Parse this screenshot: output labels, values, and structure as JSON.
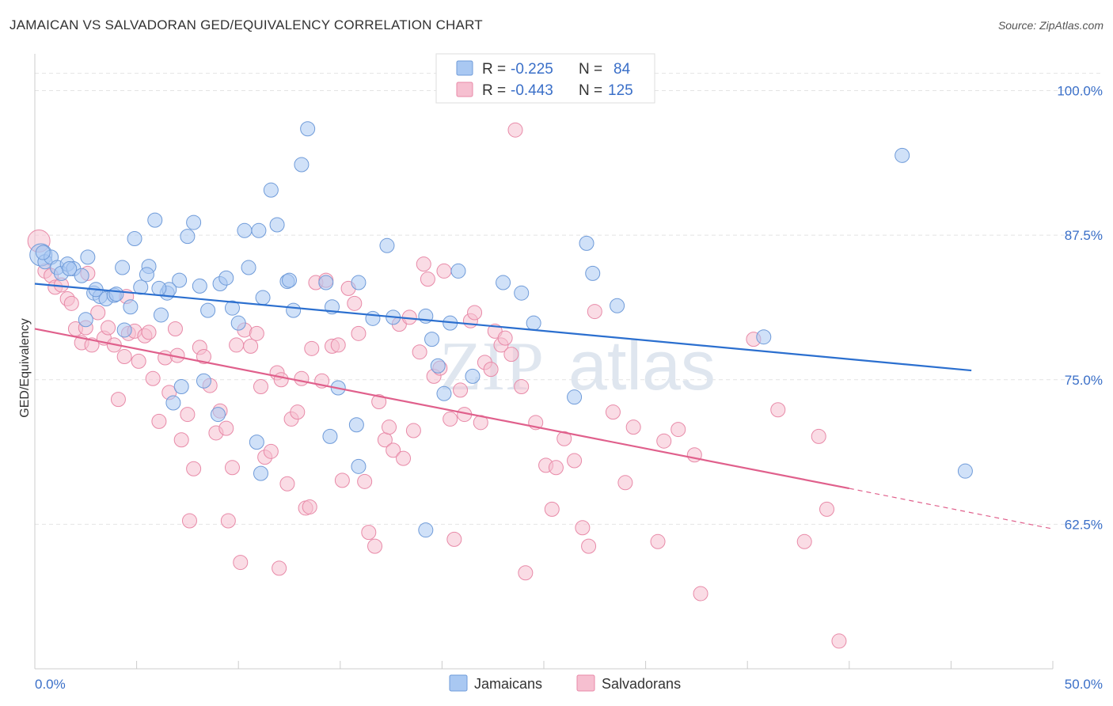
{
  "title": "JAMAICAN VS SALVADORAN GED/EQUIVALENCY CORRELATION CHART",
  "source": "Source: ZipAtlas.com",
  "watermark": {
    "zip": "ZIP",
    "atlas": "atlas"
  },
  "colors": {
    "jamaicans_fill": "#a9c8f2",
    "jamaicans_stroke": "#6f9bd9",
    "jamaicans_line": "#2b6fcf",
    "salvadorans_fill": "#f6bfd0",
    "salvadorans_stroke": "#e88aa8",
    "salvadorans_line": "#e0608c",
    "tick_text": "#3a6fc8",
    "grid": "#e4e4e4"
  },
  "legend": {
    "rows": [
      {
        "r_label": "R =",
        "r_value": "-0.225",
        "n_label": "N =",
        "n_value": "84"
      },
      {
        "r_label": "R =",
        "r_value": "-0.443",
        "n_label": "N =",
        "n_value": "125"
      }
    ]
  },
  "bottom_legend": {
    "items": [
      "Jamaicans",
      "Salvadorans"
    ]
  },
  "chart_data": {
    "type": "scatter",
    "title": "JAMAICAN VS SALVADORAN GED/EQUIVALENCY CORRELATION CHART",
    "xlabel": "",
    "ylabel": "GED/Equivalency",
    "xlim": [
      0,
      50
    ],
    "ylim": [
      50,
      102.5
    ],
    "x_tick_labels": [
      "0.0%",
      "50.0%"
    ],
    "y_ticks": [
      62.5,
      75.0,
      87.5,
      100.0
    ],
    "y_tick_labels": [
      "62.5%",
      "75.0%",
      "87.5%",
      "100.0%"
    ],
    "grid": true,
    "legend_position": "top-center",
    "series": [
      {
        "name": "Jamaicans",
        "R": -0.225,
        "N": 84,
        "trend": {
          "x": [
            0,
            46.0
          ],
          "y": [
            83.3,
            75.8
          ]
        },
        "points": [
          [
            0.3,
            85.8
          ],
          [
            0.5,
            85.2
          ],
          [
            0.8,
            85.6
          ],
          [
            1.1,
            84.7
          ],
          [
            1.3,
            84.2
          ],
          [
            1.6,
            85.0
          ],
          [
            1.9,
            84.6
          ],
          [
            2.3,
            84.0
          ],
          [
            2.6,
            85.6
          ],
          [
            2.9,
            82.5
          ],
          [
            3.2,
            82.2
          ],
          [
            3.5,
            82.0
          ],
          [
            3.9,
            82.3
          ],
          [
            4.3,
            84.7
          ],
          [
            4.7,
            81.3
          ],
          [
            4.9,
            87.2
          ],
          [
            5.2,
            83.0
          ],
          [
            5.6,
            84.8
          ],
          [
            5.9,
            88.8
          ],
          [
            6.2,
            80.6
          ],
          [
            6.5,
            82.5
          ],
          [
            7.1,
            83.6
          ],
          [
            7.5,
            87.4
          ],
          [
            7.8,
            88.6
          ],
          [
            8.1,
            83.1
          ],
          [
            8.5,
            81.0
          ],
          [
            9.1,
            83.3
          ],
          [
            9.4,
            83.8
          ],
          [
            9.7,
            81.2
          ],
          [
            10.0,
            79.9
          ],
          [
            10.3,
            87.9
          ],
          [
            10.5,
            84.7
          ],
          [
            11.0,
            87.9
          ],
          [
            11.2,
            82.1
          ],
          [
            11.6,
            91.4
          ],
          [
            11.9,
            88.4
          ],
          [
            12.4,
            83.5
          ],
          [
            12.7,
            81.0
          ],
          [
            13.1,
            93.6
          ],
          [
            13.4,
            96.7
          ],
          [
            14.3,
            83.4
          ],
          [
            14.6,
            81.3
          ],
          [
            14.9,
            74.3
          ],
          [
            15.9,
            83.4
          ],
          [
            16.6,
            80.3
          ],
          [
            17.3,
            86.6
          ],
          [
            17.6,
            80.4
          ],
          [
            19.2,
            80.5
          ],
          [
            19.5,
            78.5
          ],
          [
            19.8,
            76.2
          ],
          [
            20.1,
            73.8
          ],
          [
            20.4,
            79.9
          ],
          [
            20.8,
            84.4
          ],
          [
            21.5,
            75.3
          ],
          [
            23.0,
            83.4
          ],
          [
            23.9,
            82.5
          ],
          [
            24.5,
            79.9
          ],
          [
            26.5,
            73.5
          ],
          [
            27.1,
            86.8
          ],
          [
            27.4,
            84.2
          ],
          [
            28.6,
            81.4
          ],
          [
            35.8,
            78.7
          ],
          [
            42.6,
            94.4
          ],
          [
            45.7,
            67.1
          ],
          [
            3.0,
            82.8
          ],
          [
            4.4,
            79.3
          ],
          [
            5.5,
            84.1
          ],
          [
            6.6,
            82.8
          ],
          [
            8.3,
            74.9
          ],
          [
            9.0,
            72.0
          ],
          [
            7.2,
            74.4
          ],
          [
            6.8,
            73.0
          ],
          [
            10.9,
            69.6
          ],
          [
            11.1,
            66.9
          ],
          [
            14.5,
            70.1
          ],
          [
            15.8,
            71.1
          ],
          [
            15.9,
            67.5
          ],
          [
            19.2,
            62.0
          ],
          [
            2.5,
            80.2
          ],
          [
            1.7,
            84.6
          ],
          [
            4.0,
            82.4
          ],
          [
            0.4,
            86.0
          ],
          [
            6.1,
            82.9
          ],
          [
            12.5,
            83.6
          ]
        ]
      },
      {
        "name": "Salvadorans",
        "R": -0.443,
        "N": 125,
        "trend": {
          "x": [
            0,
            40.0
          ],
          "y": [
            79.4,
            65.6
          ]
        },
        "trend_dashed": {
          "x": [
            40.0,
            50.0
          ],
          "y": [
            65.6,
            62.1
          ]
        },
        "points": [
          [
            0.2,
            87.0
          ],
          [
            0.5,
            84.4
          ],
          [
            0.8,
            84.0
          ],
          [
            1.0,
            83.0
          ],
          [
            1.3,
            83.2
          ],
          [
            1.6,
            82.0
          ],
          [
            1.8,
            81.6
          ],
          [
            2.0,
            79.4
          ],
          [
            2.3,
            78.2
          ],
          [
            2.5,
            79.5
          ],
          [
            2.8,
            78.0
          ],
          [
            3.1,
            80.8
          ],
          [
            3.4,
            78.6
          ],
          [
            3.6,
            79.5
          ],
          [
            3.9,
            78.0
          ],
          [
            4.1,
            73.3
          ],
          [
            4.4,
            77.0
          ],
          [
            4.6,
            79.0
          ],
          [
            4.9,
            79.2
          ],
          [
            5.1,
            76.6
          ],
          [
            5.4,
            78.8
          ],
          [
            5.6,
            79.1
          ],
          [
            5.8,
            75.1
          ],
          [
            6.1,
            71.4
          ],
          [
            6.4,
            76.9
          ],
          [
            6.6,
            73.9
          ],
          [
            6.9,
            79.4
          ],
          [
            7.0,
            77.1
          ],
          [
            7.2,
            69.8
          ],
          [
            7.5,
            72.0
          ],
          [
            7.8,
            67.3
          ],
          [
            8.1,
            77.8
          ],
          [
            8.3,
            77.0
          ],
          [
            8.6,
            74.5
          ],
          [
            8.9,
            70.4
          ],
          [
            9.1,
            72.3
          ],
          [
            9.4,
            70.8
          ],
          [
            9.7,
            67.4
          ],
          [
            9.9,
            78.0
          ],
          [
            10.1,
            59.2
          ],
          [
            10.3,
            79.3
          ],
          [
            10.6,
            77.9
          ],
          [
            10.9,
            79.0
          ],
          [
            11.1,
            74.4
          ],
          [
            11.3,
            68.3
          ],
          [
            11.6,
            68.8
          ],
          [
            11.9,
            75.6
          ],
          [
            12.1,
            75.0
          ],
          [
            12.4,
            66.0
          ],
          [
            12.6,
            71.6
          ],
          [
            12.9,
            72.2
          ],
          [
            13.1,
            75.1
          ],
          [
            13.3,
            63.9
          ],
          [
            13.6,
            77.7
          ],
          [
            13.8,
            83.4
          ],
          [
            14.1,
            74.9
          ],
          [
            14.3,
            83.6
          ],
          [
            14.6,
            77.9
          ],
          [
            14.9,
            78.0
          ],
          [
            15.1,
            66.3
          ],
          [
            15.4,
            82.9
          ],
          [
            15.7,
            81.6
          ],
          [
            15.9,
            79.0
          ],
          [
            16.2,
            66.2
          ],
          [
            16.4,
            61.8
          ],
          [
            16.7,
            60.6
          ],
          [
            16.9,
            73.1
          ],
          [
            17.2,
            69.8
          ],
          [
            17.4,
            70.9
          ],
          [
            17.6,
            68.9
          ],
          [
            17.9,
            79.8
          ],
          [
            18.1,
            68.2
          ],
          [
            18.4,
            80.4
          ],
          [
            18.6,
            70.6
          ],
          [
            18.9,
            77.4
          ],
          [
            19.1,
            85.0
          ],
          [
            19.3,
            83.7
          ],
          [
            19.6,
            75.3
          ],
          [
            19.9,
            76.0
          ],
          [
            20.1,
            84.4
          ],
          [
            20.4,
            71.6
          ],
          [
            20.6,
            61.2
          ],
          [
            20.9,
            74.1
          ],
          [
            21.1,
            72.0
          ],
          [
            21.4,
            80.1
          ],
          [
            21.6,
            80.8
          ],
          [
            21.9,
            71.3
          ],
          [
            22.1,
            76.5
          ],
          [
            22.4,
            75.9
          ],
          [
            22.6,
            79.2
          ],
          [
            22.9,
            78.0
          ],
          [
            23.1,
            78.6
          ],
          [
            23.4,
            77.2
          ],
          [
            23.6,
            96.6
          ],
          [
            23.9,
            74.4
          ],
          [
            24.1,
            58.3
          ],
          [
            24.6,
            71.3
          ],
          [
            25.1,
            67.6
          ],
          [
            25.4,
            63.8
          ],
          [
            25.6,
            67.4
          ],
          [
            26.0,
            69.9
          ],
          [
            26.5,
            68.0
          ],
          [
            26.9,
            62.2
          ],
          [
            27.2,
            60.6
          ],
          [
            27.5,
            80.9
          ],
          [
            28.4,
            72.2
          ],
          [
            29.0,
            66.1
          ],
          [
            29.4,
            70.9
          ],
          [
            30.6,
            61.0
          ],
          [
            30.9,
            69.7
          ],
          [
            31.6,
            70.7
          ],
          [
            32.4,
            68.5
          ],
          [
            35.3,
            78.5
          ],
          [
            36.5,
            72.4
          ],
          [
            37.8,
            61.0
          ],
          [
            38.5,
            70.1
          ],
          [
            38.9,
            63.8
          ],
          [
            39.5,
            52.4
          ],
          [
            32.7,
            56.5
          ],
          [
            4.5,
            82.2
          ],
          [
            2.6,
            84.2
          ],
          [
            13.5,
            64.0
          ],
          [
            12.0,
            58.7
          ],
          [
            7.6,
            62.8
          ],
          [
            9.5,
            62.8
          ]
        ]
      }
    ]
  }
}
